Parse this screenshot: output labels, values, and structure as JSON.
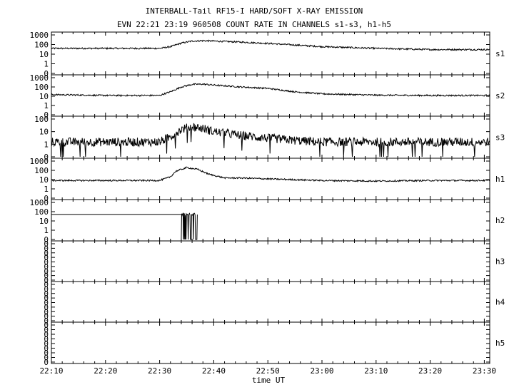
{
  "title_line1": "INTERBALL-Tail RF15-I HARD/SOFT X-RAY EMISSION",
  "title_line2": "EVN 22:21 23:19 960508  COUNT RATE IN CHANNELS s1-s3, h1-h5",
  "chart_data": {
    "type": "line",
    "xlabel": "time UT",
    "x_ticks": [
      "22:10",
      "22:20",
      "22:30",
      "22:40",
      "22:50",
      "23:00",
      "23:10",
      "23:20",
      "23:30"
    ],
    "x_range": [
      "22:10",
      "23:31"
    ],
    "y_scale": "log",
    "grid": false,
    "panels": [
      {
        "name": "s1",
        "y_ticks": [
          "1000",
          "100",
          "10",
          "1",
          "0"
        ],
        "ylim": [
          0.1,
          1000
        ],
        "series": {
          "x": [
            "22:10",
            "22:20",
            "22:30",
            "22:32",
            "22:34",
            "22:36",
            "22:38",
            "22:40",
            "22:45",
            "22:50",
            "22:55",
            "23:00",
            "23:10",
            "23:20",
            "23:31"
          ],
          "y": [
            40,
            40,
            40,
            60,
            140,
            230,
            250,
            230,
            180,
            130,
            90,
            60,
            40,
            30,
            30
          ]
        }
      },
      {
        "name": "s2",
        "y_ticks": [
          "1000",
          "100",
          "10",
          "1",
          "0"
        ],
        "ylim": [
          0.1,
          1000
        ],
        "series": {
          "x": [
            "22:10",
            "22:20",
            "22:30",
            "22:32",
            "22:34",
            "22:36",
            "22:38",
            "22:40",
            "22:45",
            "22:50",
            "22:55",
            "23:00",
            "23:10",
            "23:20",
            "23:31"
          ],
          "y": [
            15,
            12,
            12,
            30,
            100,
            190,
            200,
            160,
            100,
            70,
            30,
            18,
            13,
            12,
            12
          ]
        }
      },
      {
        "name": "s3",
        "y_ticks": [
          "100",
          "10",
          "1",
          "0"
        ],
        "ylim": [
          0.1,
          100
        ],
        "series": {
          "x": [
            "22:10",
            "22:20",
            "22:30",
            "22:32",
            "22:34",
            "22:36",
            "22:38",
            "22:40",
            "22:45",
            "22:50",
            "22:55",
            "23:00",
            "23:10",
            "23:20",
            "23:31"
          ],
          "y": [
            1.5,
            1.5,
            1.5,
            4,
            15,
            25,
            18,
            10,
            5,
            3,
            2,
            1.5,
            1.5,
            1.5,
            1.5
          ]
        }
      },
      {
        "name": "h1",
        "y_ticks": [
          "1000",
          "100",
          "10",
          "1",
          "0"
        ],
        "ylim": [
          0.1,
          1000
        ],
        "series": {
          "x": [
            "22:10",
            "22:20",
            "22:30",
            "22:32",
            "22:33",
            "22:35",
            "22:37",
            "22:39",
            "22:42",
            "22:45",
            "22:50",
            "23:00",
            "23:10",
            "23:20",
            "23:31"
          ],
          "y": [
            8,
            8,
            8,
            20,
            80,
            200,
            130,
            40,
            15,
            15,
            12,
            8,
            7,
            8,
            8
          ]
        }
      },
      {
        "name": "h2",
        "y_ticks": [
          "1000",
          "100",
          "10",
          "1",
          "0"
        ],
        "ylim": [
          0.1,
          1000
        ],
        "series": {
          "x": [
            "22:10",
            "22:34"
          ],
          "y": [
            50,
            50
          ]
        },
        "burst_x": [
          "22:34",
          "22:37"
        ]
      },
      {
        "name": "h3",
        "y_ticks": [
          "0",
          "0",
          "0",
          "0",
          "0",
          "0",
          "0",
          "0",
          "0"
        ],
        "series": null
      },
      {
        "name": "h4",
        "y_ticks": [
          "0",
          "0",
          "0",
          "0",
          "0",
          "0",
          "0",
          "0",
          "0"
        ],
        "series": null
      },
      {
        "name": "h5",
        "y_ticks": [
          "0",
          "0",
          "0",
          "0",
          "0",
          "0",
          "0",
          "0",
          "0"
        ],
        "series": null
      }
    ]
  }
}
